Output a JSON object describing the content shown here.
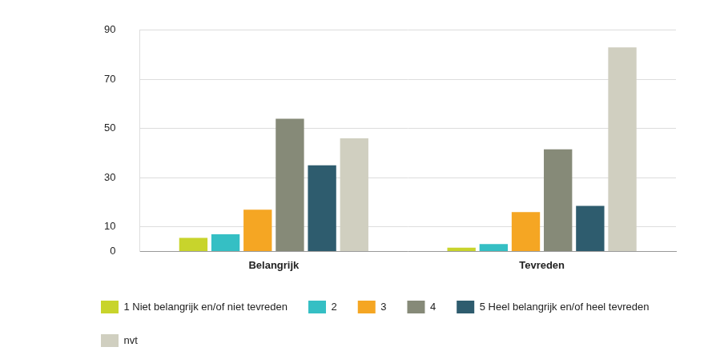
{
  "chart_data": {
    "type": "bar",
    "categories": [
      "Belangrijk",
      "Tevreden"
    ],
    "series": [
      {
        "name": "1 Niet belangrijk en/of niet tevreden",
        "color": "#c8d42c",
        "values": [
          5.5,
          1.5
        ]
      },
      {
        "name": "2",
        "color": "#35bfc4",
        "values": [
          7,
          3
        ]
      },
      {
        "name": "3",
        "color": "#f5a623",
        "values": [
          17,
          16
        ]
      },
      {
        "name": "4",
        "color": "#868a78",
        "values": [
          54,
          41.5
        ]
      },
      {
        "name": "5 Heel belangrijk en/of heel tevreden",
        "color": "#2e5c6e",
        "values": [
          35,
          18.5
        ]
      },
      {
        "name": "nvt",
        "color": "#d0cfc0",
        "values": [
          46,
          83
        ]
      }
    ],
    "ylim": [
      0,
      90
    ],
    "yticks": [
      0,
      10,
      30,
      50,
      70,
      90
    ],
    "grid": true,
    "legend": "bottom"
  }
}
